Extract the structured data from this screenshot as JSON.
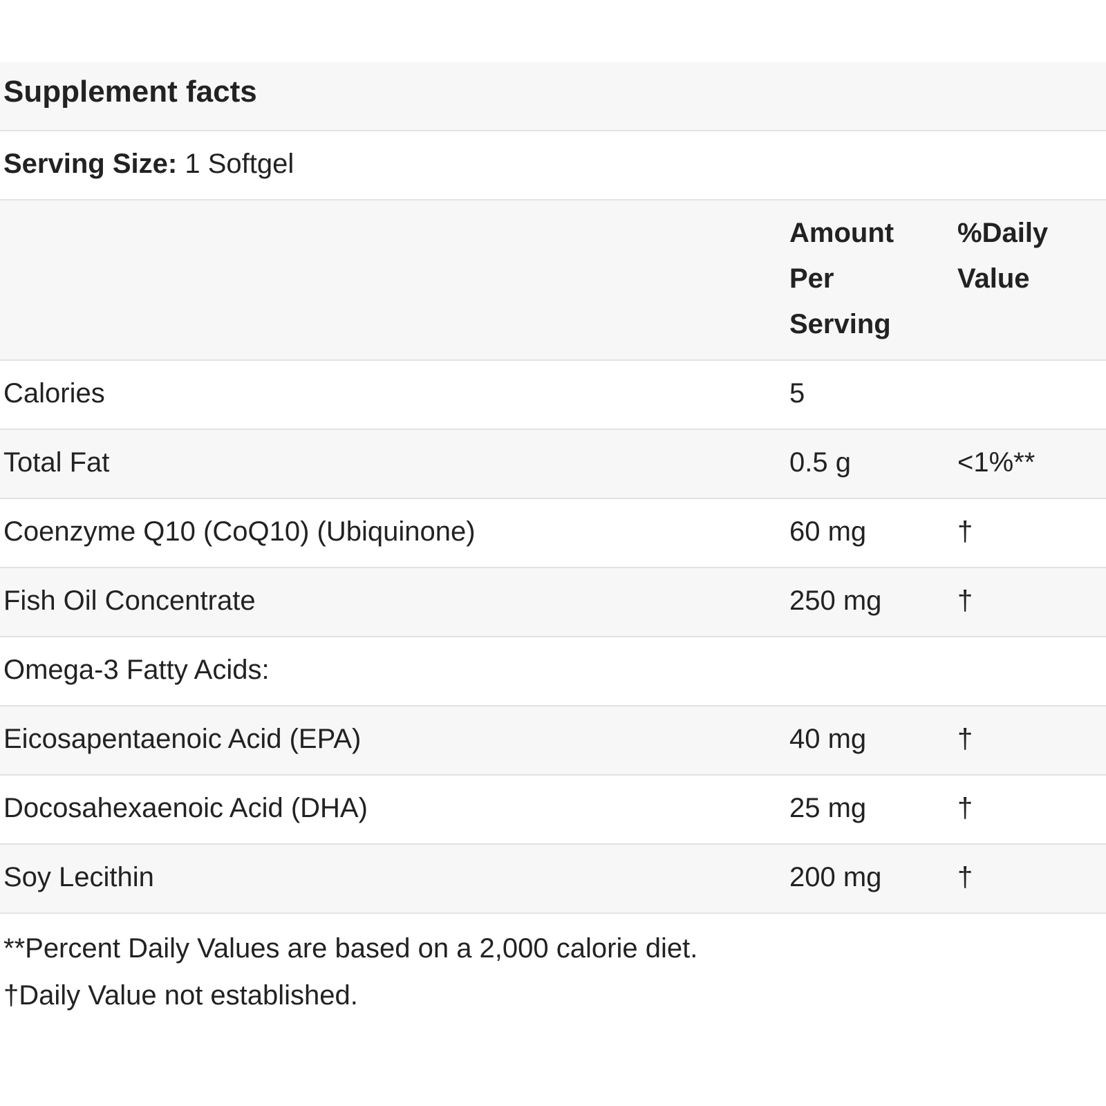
{
  "header": {
    "title": "Supplement facts"
  },
  "serving": {
    "label": "Serving Size:",
    "value": "1 Softgel"
  },
  "table": {
    "columns": [
      "Amount Per Serving",
      "%Daily Value"
    ],
    "rows": [
      {
        "name": "Calories",
        "amount": "5"
      },
      {
        "name": "Total Fat",
        "amount": "0.5 g",
        "daily_value": "<1%**"
      },
      {
        "name": "Coenzyme Q10 (CoQ10) (Ubiquinone)",
        "amount": "60 mg",
        "daily_value": "†"
      },
      {
        "name": "Fish Oil Concentrate",
        "amount": "250 mg",
        "daily_value": "†"
      },
      {
        "name": "Omega-3 Fatty Acids:"
      },
      {
        "name": "Eicosapentaenoic Acid (EPA)",
        "amount": "40 mg",
        "daily_value": "†"
      },
      {
        "name": "Docosahexaenoic Acid (DHA)",
        "amount": "25 mg",
        "daily_value": "†"
      },
      {
        "name": "Soy Lecithin",
        "amount": "200 mg",
        "daily_value": "†"
      }
    ]
  },
  "footnotes": [
    "**Percent Daily Values are based on a 2,000 calorie diet.",
    "†Daily Value not established."
  ]
}
